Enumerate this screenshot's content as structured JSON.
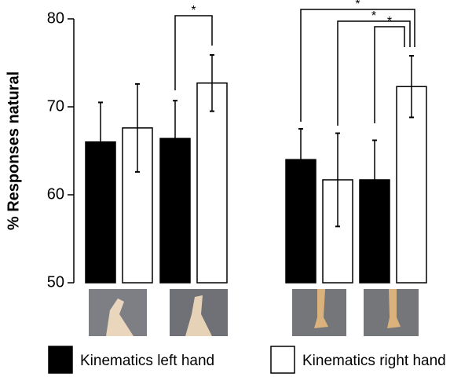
{
  "chart_data": {
    "type": "bar",
    "y_label": "% Responses natural",
    "categories": [
      null,
      null,
      null,
      null
    ],
    "series": [
      {
        "name": "Kinematics left hand",
        "color": "#000000",
        "values": [
          66.0,
          66.4,
          64.0,
          61.7
        ],
        "errors": [
          4.5,
          4.3,
          3.5,
          4.5
        ]
      },
      {
        "name": "Kinematics right hand",
        "color": "#ffffff",
        "values": [
          67.6,
          72.7,
          61.7,
          72.3
        ],
        "errors": [
          5.0,
          3.2,
          5.3,
          3.5
        ]
      }
    ],
    "ylim": [
      50,
      80
    ],
    "yticks": [
      50,
      60,
      70,
      80
    ],
    "significance_labels": [
      "*",
      "*",
      "*",
      "*"
    ]
  }
}
